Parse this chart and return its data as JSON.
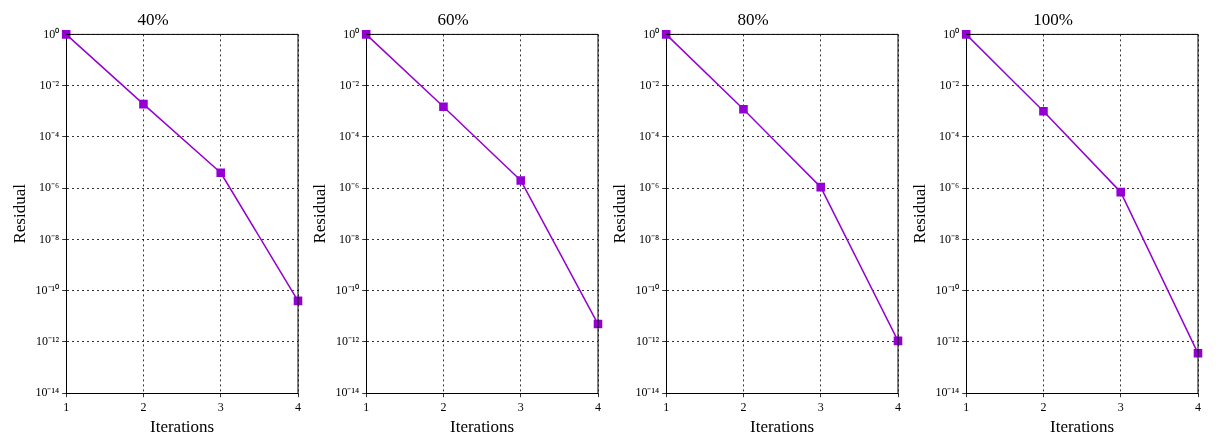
{
  "chart_data": [
    {
      "type": "line",
      "title": "40%",
      "xlabel": "Iterations",
      "ylabel": "Residual",
      "x": [
        1,
        2,
        3,
        4
      ],
      "series": [
        {
          "color": "#9400d3",
          "values": [
            1,
            0.0019,
            4e-06,
            4e-11
          ]
        }
      ],
      "xlim": [
        1,
        4
      ],
      "xticks": [
        1,
        2,
        3,
        4
      ],
      "ylim": [
        1e-14,
        1
      ],
      "yticks": [
        {
          "value": 1e-14,
          "label": "10⁻¹⁴"
        },
        {
          "value": 1e-12,
          "label": "10⁻¹²"
        },
        {
          "value": 1e-10,
          "label": "10⁻¹⁰"
        },
        {
          "value": 1e-08,
          "label": "10⁻⁸"
        },
        {
          "value": 1e-06,
          "label": "10⁻⁶"
        },
        {
          "value": 0.0001,
          "label": "10⁻⁴"
        },
        {
          "value": 0.01,
          "label": "10⁻²"
        },
        {
          "value": 1,
          "label": "10⁰"
        }
      ],
      "log": "y",
      "grid": true,
      "marker": "square",
      "line_style": "solid"
    },
    {
      "type": "line",
      "title": "60%",
      "xlabel": "Iterations",
      "ylabel": "Residual",
      "x": [
        1,
        2,
        3,
        4
      ],
      "series": [
        {
          "color": "#9400d3",
          "values": [
            1,
            0.0015,
            2e-06,
            5e-12
          ]
        }
      ],
      "xlim": [
        1,
        4
      ],
      "xticks": [
        1,
        2,
        3,
        4
      ],
      "ylim": [
        1e-14,
        1
      ],
      "yticks": [
        {
          "value": 1e-14,
          "label": "10⁻¹⁴"
        },
        {
          "value": 1e-12,
          "label": "10⁻¹²"
        },
        {
          "value": 1e-10,
          "label": "10⁻¹⁰"
        },
        {
          "value": 1e-08,
          "label": "10⁻⁸"
        },
        {
          "value": 1e-06,
          "label": "10⁻⁶"
        },
        {
          "value": 0.0001,
          "label": "10⁻⁴"
        },
        {
          "value": 0.01,
          "label": "10⁻²"
        },
        {
          "value": 1,
          "label": "10⁰"
        }
      ],
      "log": "y",
      "grid": true,
      "marker": "square",
      "line_style": "solid"
    },
    {
      "type": "line",
      "title": "80%",
      "xlabel": "Iterations",
      "ylabel": "Residual",
      "x": [
        1,
        2,
        3,
        4
      ],
      "series": [
        {
          "color": "#9400d3",
          "values": [
            1,
            0.0012,
            1.1e-06,
            1.1e-12
          ]
        }
      ],
      "xlim": [
        1,
        4
      ],
      "xticks": [
        1,
        2,
        3,
        4
      ],
      "ylim": [
        1e-14,
        1
      ],
      "yticks": [
        {
          "value": 1e-14,
          "label": "10⁻¹⁴"
        },
        {
          "value": 1e-12,
          "label": "10⁻¹²"
        },
        {
          "value": 1e-10,
          "label": "10⁻¹⁰"
        },
        {
          "value": 1e-08,
          "label": "10⁻⁸"
        },
        {
          "value": 1e-06,
          "label": "10⁻⁶"
        },
        {
          "value": 0.0001,
          "label": "10⁻⁴"
        },
        {
          "value": 0.01,
          "label": "10⁻²"
        },
        {
          "value": 1,
          "label": "10⁰"
        }
      ],
      "log": "y",
      "grid": true,
      "marker": "square",
      "line_style": "solid"
    },
    {
      "type": "line",
      "title": "100%",
      "xlabel": "Iterations",
      "ylabel": "Residual",
      "x": [
        1,
        2,
        3,
        4
      ],
      "series": [
        {
          "color": "#9400d3",
          "values": [
            1,
            0.001,
            7e-07,
            3.6e-13
          ]
        }
      ],
      "xlim": [
        1,
        4
      ],
      "xticks": [
        1,
        2,
        3,
        4
      ],
      "ylim": [
        1e-14,
        1
      ],
      "yticks": [
        {
          "value": 1e-14,
          "label": "10⁻¹⁴"
        },
        {
          "value": 1e-12,
          "label": "10⁻¹²"
        },
        {
          "value": 1e-10,
          "label": "10⁻¹⁰"
        },
        {
          "value": 1e-08,
          "label": "10⁻⁸"
        },
        {
          "value": 1e-06,
          "label": "10⁻⁶"
        },
        {
          "value": 0.0001,
          "label": "10⁻⁴"
        },
        {
          "value": 0.01,
          "label": "10⁻²"
        },
        {
          "value": 1,
          "label": "10⁰"
        }
      ],
      "log": "y",
      "grid": true,
      "marker": "square",
      "line_style": "solid"
    }
  ]
}
